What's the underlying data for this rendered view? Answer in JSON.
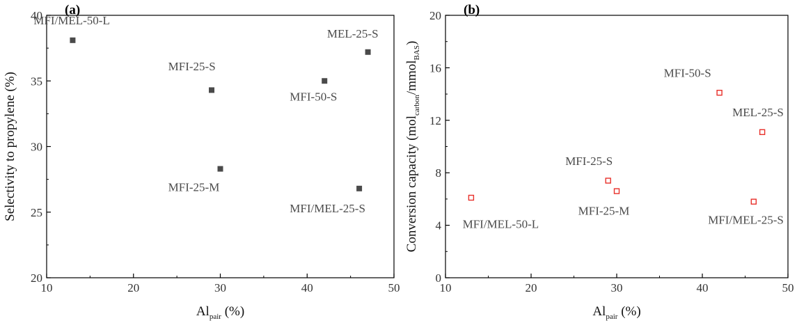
{
  "chart_data": [
    {
      "type": "scatter",
      "panel_label": "(a)",
      "xlabel_main": "Al",
      "xlabel_sub": "pair",
      "xlabel_tail": " (%)",
      "ylabel": "Selectivity to propylene (%)",
      "xlim": [
        10,
        50
      ],
      "ylim": [
        20,
        40
      ],
      "xticks": [
        10,
        20,
        30,
        40,
        50
      ],
      "yticks": [
        20,
        25,
        30,
        35,
        40
      ],
      "marker": "filled-square",
      "color": "#4a4a4a",
      "points": [
        {
          "label": "MFI/MEL-50-L",
          "x": 13,
          "y": 38.1,
          "lx": 8.5,
          "ly": 39.3,
          "anchor": "start"
        },
        {
          "label": "MFI-25-S",
          "x": 29,
          "y": 34.3,
          "lx": 24,
          "ly": 35.8,
          "anchor": "start"
        },
        {
          "label": "MEL-25-S",
          "x": 47,
          "y": 37.2,
          "lx": 48.2,
          "ly": 38.3,
          "anchor": "end"
        },
        {
          "label": "MFI-50-S",
          "x": 42,
          "y": 35.0,
          "lx": 38,
          "ly": 33.5,
          "anchor": "start"
        },
        {
          "label": "MFI-25-M",
          "x": 30,
          "y": 28.3,
          "lx": 24,
          "ly": 26.6,
          "anchor": "start"
        },
        {
          "label": "MFI/MEL-25-S",
          "x": 46,
          "y": 26.8,
          "lx": 38,
          "ly": 25.0,
          "anchor": "start"
        }
      ]
    },
    {
      "type": "scatter",
      "panel_label": "(b)",
      "xlabel_main": "Al",
      "xlabel_sub": "pair",
      "xlabel_tail": " (%)",
      "ylabel_parts": [
        {
          "t": "Conversion capacity (mol",
          "sub": false
        },
        {
          "t": "carbon",
          "sub": true
        },
        {
          "t": "/mmol",
          "sub": false
        },
        {
          "t": "BAS",
          "sub": true
        },
        {
          "t": ")",
          "sub": false
        }
      ],
      "xlim": [
        10,
        50
      ],
      "ylim": [
        0,
        20
      ],
      "xticks": [
        10,
        20,
        30,
        40,
        50
      ],
      "yticks": [
        0,
        4,
        8,
        12,
        16,
        20
      ],
      "marker": "open-square",
      "color": "#e8302a",
      "points": [
        {
          "label": "MFI/MEL-50-L",
          "x": 13,
          "y": 6.1,
          "lx": 12,
          "ly": 3.8,
          "anchor": "start"
        },
        {
          "label": "MFI-25-S",
          "x": 29,
          "y": 7.4,
          "lx": 24,
          "ly": 8.6,
          "anchor": "start"
        },
        {
          "label": "MFI-25-M",
          "x": 30,
          "y": 6.6,
          "lx": 25.5,
          "ly": 4.8,
          "anchor": "start"
        },
        {
          "label": "MFI-50-S",
          "x": 42,
          "y": 14.1,
          "lx": 35.5,
          "ly": 15.3,
          "anchor": "start"
        },
        {
          "label": "MEL-25-S",
          "x": 47,
          "y": 11.1,
          "lx": 49.5,
          "ly": 12.3,
          "anchor": "end"
        },
        {
          "label": "MFI/MEL-25-S",
          "x": 46,
          "y": 5.8,
          "lx": 49.5,
          "ly": 4.1,
          "anchor": "end"
        }
      ]
    }
  ]
}
